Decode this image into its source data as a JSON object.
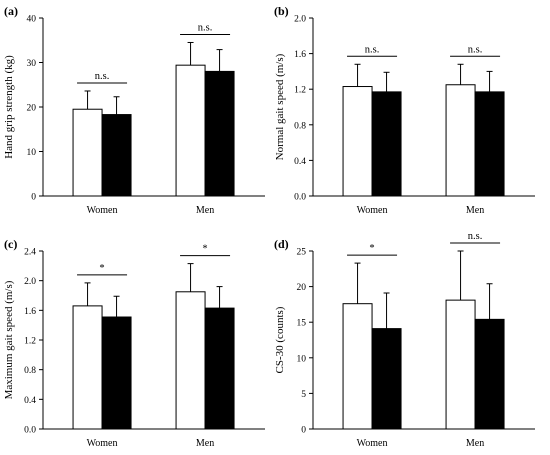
{
  "chart_data": [
    {
      "panel_label": "(a)",
      "type": "bar",
      "ylabel": "Hand grip strength (kg)",
      "ylim": [
        0,
        40
      ],
      "yticks": [
        "0",
        "10",
        "20",
        "30",
        "40"
      ],
      "categories": [
        "Women",
        "Men"
      ],
      "series": [
        {
          "fill": "#ffffff",
          "values": [
            19.5,
            29.4
          ],
          "errors": [
            4.1,
            5.1
          ]
        },
        {
          "fill": "#000000",
          "values": [
            18.3,
            28.0
          ],
          "errors": [
            4.0,
            4.9
          ]
        }
      ],
      "significance": [
        "n.s.",
        "n.s."
      ]
    },
    {
      "panel_label": "(b)",
      "type": "bar",
      "ylabel": "Normal gait speed (m/s)",
      "ylim": [
        0,
        2.0
      ],
      "yticks": [
        "0.0",
        "0.4",
        "0.8",
        "1.2",
        "1.6",
        "2.0"
      ],
      "categories": [
        "Women",
        "Men"
      ],
      "series": [
        {
          "fill": "#ffffff",
          "values": [
            1.23,
            1.25
          ],
          "errors": [
            0.25,
            0.23
          ]
        },
        {
          "fill": "#000000",
          "values": [
            1.17,
            1.17
          ],
          "errors": [
            0.22,
            0.23
          ]
        }
      ],
      "significance": [
        "n.s.",
        "n.s."
      ]
    },
    {
      "panel_label": "(c)",
      "type": "bar",
      "ylabel": "Maximum gait speed (m/s)",
      "ylim": [
        0,
        2.4
      ],
      "yticks": [
        "0.0",
        "0.4",
        "0.8",
        "1.2",
        "1.6",
        "2.0",
        "2.4"
      ],
      "categories": [
        "Women",
        "Men"
      ],
      "series": [
        {
          "fill": "#ffffff",
          "values": [
            1.66,
            1.85
          ],
          "errors": [
            0.31,
            0.38
          ]
        },
        {
          "fill": "#000000",
          "values": [
            1.51,
            1.63
          ],
          "errors": [
            0.28,
            0.29
          ]
        }
      ],
      "significance": [
        "*",
        "*"
      ]
    },
    {
      "panel_label": "(d)",
      "type": "bar",
      "ylabel": "CS-30 (counts)",
      "ylim": [
        0,
        25
      ],
      "yticks": [
        "0",
        "5",
        "10",
        "15",
        "20",
        "25"
      ],
      "categories": [
        "Women",
        "Men"
      ],
      "series": [
        {
          "fill": "#ffffff",
          "values": [
            17.6,
            18.1
          ],
          "errors": [
            5.7,
            6.9
          ]
        },
        {
          "fill": "#000000",
          "values": [
            14.1,
            15.4
          ],
          "errors": [
            5.0,
            5.0
          ]
        }
      ],
      "significance": [
        "*",
        "n.s."
      ]
    }
  ]
}
